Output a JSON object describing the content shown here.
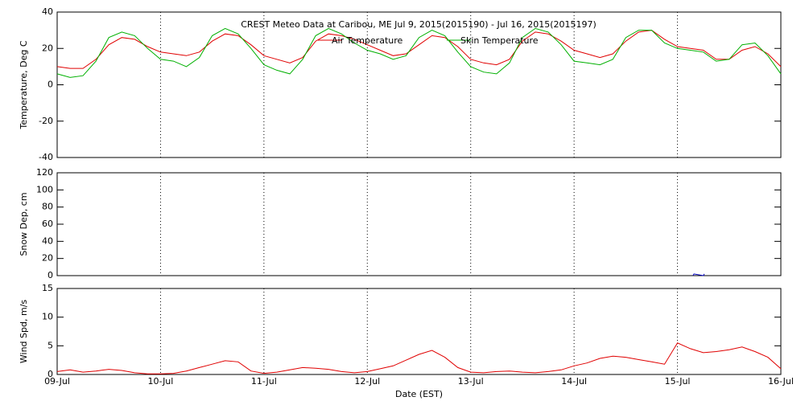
{
  "chart_data": [
    {
      "type": "line",
      "title": "CREST Meteo Data at Caribou, ME   Jul  9, 2015(2015190) - Jul 16, 2015(2015197)",
      "ylabel": "Temperature, Deg C",
      "xlim": [
        0,
        7
      ],
      "ylim": [
        -40,
        40
      ],
      "yticks": [
        -40,
        -20,
        0,
        20,
        40
      ],
      "grid": "x",
      "legend": "top",
      "x": [
        0,
        0.125,
        0.25,
        0.375,
        0.5,
        0.625,
        0.75,
        0.875,
        1,
        1.125,
        1.25,
        1.375,
        1.5,
        1.625,
        1.75,
        1.875,
        2,
        2.125,
        2.25,
        2.375,
        2.5,
        2.625,
        2.75,
        2.875,
        3,
        3.125,
        3.25,
        3.375,
        3.5,
        3.625,
        3.75,
        3.875,
        4,
        4.125,
        4.25,
        4.375,
        4.5,
        4.625,
        4.75,
        4.875,
        5,
        5.125,
        5.25,
        5.375,
        5.5,
        5.625,
        5.75,
        5.875,
        6,
        6.125,
        6.25,
        6.375,
        6.5,
        6.625,
        6.75,
        6.875,
        7
      ],
      "series": [
        {
          "name": "Air Temperature",
          "color": "#e00000",
          "values": [
            10,
            9,
            9,
            14,
            22,
            26,
            25,
            21,
            18,
            17,
            16,
            18,
            24,
            28,
            27,
            22,
            16,
            14,
            12,
            15,
            24,
            28,
            27,
            25,
            22,
            19,
            16,
            17,
            22,
            27,
            26,
            21,
            14,
            12,
            11,
            14,
            24,
            29,
            28,
            24,
            19,
            17,
            15,
            17,
            24,
            29,
            30,
            25,
            21,
            20,
            19,
            14,
            14,
            19,
            21,
            17,
            10
          ]
        },
        {
          "name": "Skin Temperature",
          "color": "#00b000",
          "values": [
            6,
            4,
            5,
            13,
            26,
            29,
            27,
            20,
            14,
            13,
            10,
            15,
            27,
            31,
            28,
            20,
            11,
            8,
            6,
            14,
            27,
            31,
            28,
            23,
            19,
            17,
            14,
            16,
            26,
            30,
            27,
            18,
            10,
            7,
            6,
            12,
            26,
            31,
            29,
            22,
            13,
            12,
            11,
            14,
            26,
            30,
            30,
            23,
            20,
            19,
            18,
            13,
            14,
            22,
            23,
            16,
            6
          ]
        }
      ]
    },
    {
      "type": "line",
      "ylabel": "Snow Dep, cm",
      "xlim": [
        0,
        7
      ],
      "ylim": [
        0,
        120
      ],
      "yticks": [
        0,
        20,
        40,
        60,
        80,
        100,
        120
      ],
      "grid": "x",
      "x": [
        6.15,
        6.16,
        6.25,
        6.26
      ],
      "series": [
        {
          "color": "#0000c0",
          "values": [
            0,
            2,
            0,
            2
          ]
        }
      ]
    },
    {
      "type": "line",
      "ylabel": "Wind Spd, m/s",
      "xlabel": "Date (EST)",
      "xlim": [
        0,
        7
      ],
      "ylim": [
        0,
        15
      ],
      "yticks": [
        0,
        5,
        10,
        15
      ],
      "grid": "x",
      "xticks": [
        {
          "value": 0,
          "label": "09-Jul"
        },
        {
          "value": 1,
          "label": "10-Jul"
        },
        {
          "value": 2,
          "label": "11-Jul"
        },
        {
          "value": 3,
          "label": "12-Jul"
        },
        {
          "value": 4,
          "label": "13-Jul"
        },
        {
          "value": 5,
          "label": "14-Jul"
        },
        {
          "value": 6,
          "label": "15-Jul"
        },
        {
          "value": 7,
          "label": "16-Jul"
        }
      ],
      "x": [
        0,
        0.125,
        0.25,
        0.375,
        0.5,
        0.625,
        0.75,
        0.875,
        1,
        1.125,
        1.25,
        1.375,
        1.5,
        1.625,
        1.75,
        1.875,
        2,
        2.125,
        2.25,
        2.375,
        2.5,
        2.625,
        2.75,
        2.875,
        3,
        3.125,
        3.25,
        3.375,
        3.5,
        3.625,
        3.75,
        3.875,
        4,
        4.125,
        4.25,
        4.375,
        4.5,
        4.625,
        4.75,
        4.875,
        5,
        5.125,
        5.25,
        5.375,
        5.5,
        5.625,
        5.75,
        5.875,
        6,
        6.125,
        6.25,
        6.375,
        6.5,
        6.625,
        6.75,
        6.875,
        7
      ],
      "series": [
        {
          "color": "#e00000",
          "values": [
            0.5,
            0.8,
            0.4,
            0.6,
            0.9,
            0.7,
            0.3,
            0.1,
            0.1,
            0.2,
            0.6,
            1.2,
            1.8,
            2.4,
            2.2,
            0.6,
            0.2,
            0.4,
            0.8,
            1.2,
            1.1,
            0.9,
            0.5,
            0.3,
            0.5,
            1.0,
            1.5,
            2.5,
            3.5,
            4.2,
            3.0,
            1.2,
            0.4,
            0.3,
            0.5,
            0.6,
            0.4,
            0.3,
            0.5,
            0.8,
            1.5,
            2.0,
            2.8,
            3.2,
            3.0,
            2.6,
            2.2,
            1.8,
            5.5,
            4.5,
            3.8,
            4.0,
            4.3,
            4.8,
            4.0,
            3.0,
            1.0
          ]
        }
      ]
    }
  ]
}
